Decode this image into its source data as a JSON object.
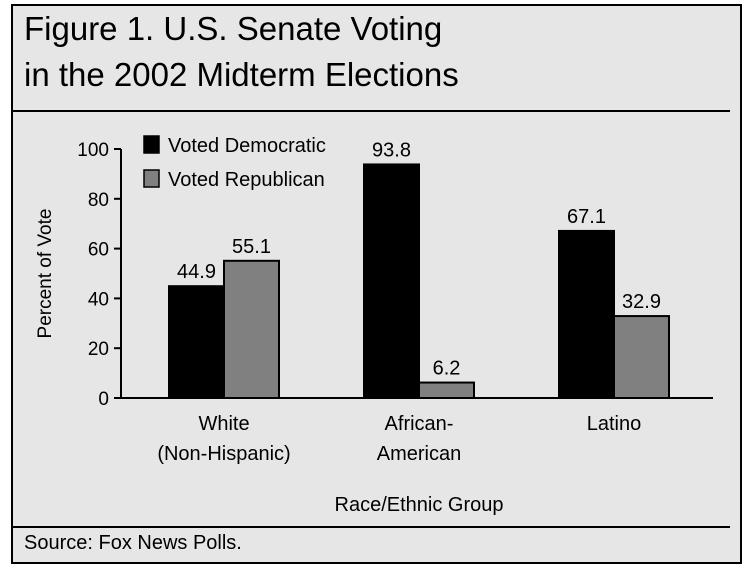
{
  "title_lines": [
    "Figure 1. U.S. Senate Voting",
    "in the 2002 Midterm Elections"
  ],
  "source": "Source: Fox News Polls.",
  "colors": {
    "democratic": "#000000",
    "republican": "#808080",
    "background": "#e6e6e6"
  },
  "chart_data": {
    "type": "bar",
    "title": "Figure 1. U.S. Senate Voting in the 2002 Midterm Elections",
    "xlabel": "Race/Ethnic Group",
    "ylabel": "Percent of Vote",
    "ylim": [
      0,
      100
    ],
    "yticks": [
      0,
      20,
      40,
      60,
      80,
      100
    ],
    "grid": false,
    "legend_position": "top-left",
    "categories": [
      [
        "White",
        "(Non-Hispanic)"
      ],
      [
        "African-",
        "American"
      ],
      [
        "Latino"
      ]
    ],
    "series": [
      {
        "name": "Voted Democratic",
        "color": "#000000",
        "values": [
          44.9,
          93.8,
          67.1
        ],
        "labels": [
          "44.9",
          "93.8",
          "67.1"
        ]
      },
      {
        "name": "Voted Republican",
        "color": "#808080",
        "values": [
          55.1,
          6.2,
          32.9
        ],
        "labels": [
          "55.1",
          "6.2",
          "32.9"
        ]
      }
    ]
  }
}
